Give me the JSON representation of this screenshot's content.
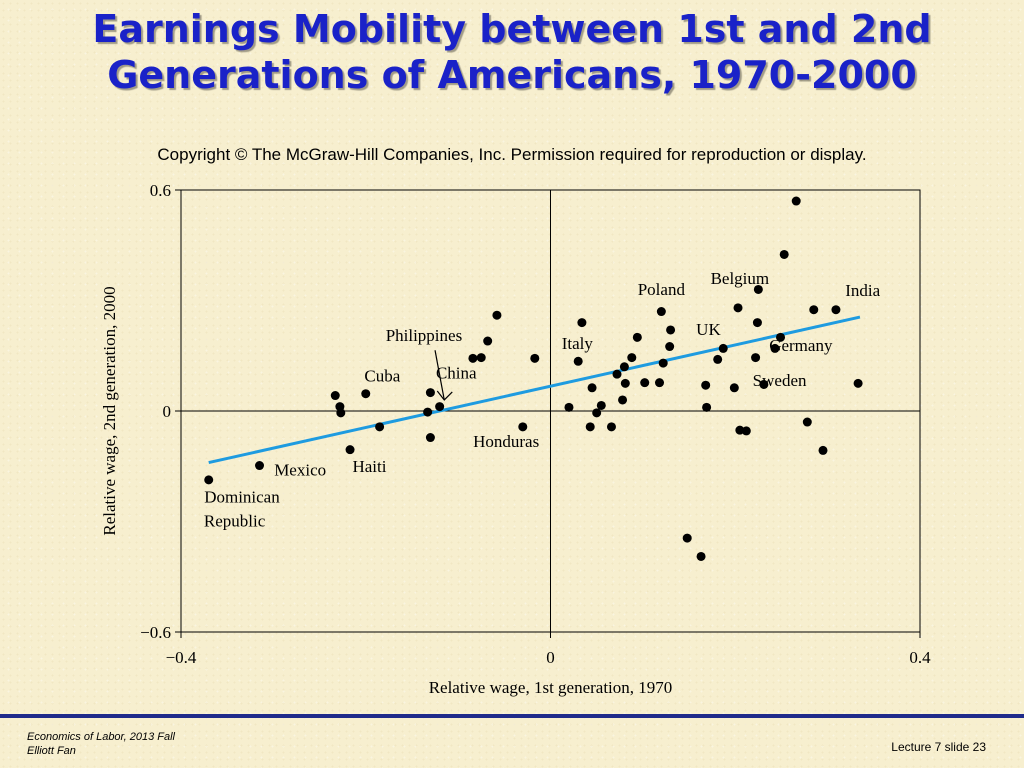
{
  "slide": {
    "title_line1": "Earnings Mobility between 1st and 2nd",
    "title_line2": "Generations of Americans, 1970-2000",
    "copyright": "Copyright © The McGraw-Hill Companies, Inc. Permission required for reproduction or display.",
    "footer_course": "Economics of Labor, 2013 Fall",
    "footer_author": "Elliott Fan",
    "footer_slide": "Lecture 7 slide 23"
  },
  "colors": {
    "title": "#1a22c8",
    "trend_line": "#1e9be0",
    "points": "#000000",
    "footer_line": "#1f2a8a"
  },
  "chart_data": {
    "type": "scatter",
    "xlabel": "Relative wage, 1st generation, 1970",
    "ylabel": "Relative wage, 2nd generation, 2000",
    "xlim": [
      -0.4,
      0.4
    ],
    "ylim": [
      -0.6,
      0.6
    ],
    "xticks": [
      {
        "value": -0.4,
        "label": "−0.4"
      },
      {
        "value": 0,
        "label": "0"
      },
      {
        "value": 0.4,
        "label": "0.4"
      }
    ],
    "yticks": [
      {
        "value": 0.6,
        "label": "0.6"
      },
      {
        "value": 0,
        "label": "0"
      },
      {
        "value": -0.6,
        "label": "−0.6"
      }
    ],
    "trend_line": {
      "x": [
        -0.37,
        0.335
      ],
      "y": [
        -0.14,
        0.255
      ]
    },
    "points": [
      {
        "x": 0.266,
        "y": 0.57
      },
      {
        "x": 0.253,
        "y": 0.425
      },
      {
        "x": 0.225,
        "y": 0.33
      },
      {
        "x": 0.203,
        "y": 0.28
      },
      {
        "x": 0.285,
        "y": 0.275
      },
      {
        "x": 0.309,
        "y": 0.275
      },
      {
        "x": 0.12,
        "y": 0.27
      },
      {
        "x": 0.034,
        "y": 0.24
      },
      {
        "x": 0.224,
        "y": 0.24
      },
      {
        "x": 0.13,
        "y": 0.22
      },
      {
        "x": 0.094,
        "y": 0.2
      },
      {
        "x": 0.249,
        "y": 0.2
      },
      {
        "x": 0.129,
        "y": 0.175
      },
      {
        "x": 0.187,
        "y": 0.17
      },
      {
        "x": 0.243,
        "y": 0.17
      },
      {
        "x": 0.088,
        "y": 0.145
      },
      {
        "x": 0.181,
        "y": 0.14
      },
      {
        "x": 0.222,
        "y": 0.145
      },
      {
        "x": 0.03,
        "y": 0.135
      },
      {
        "x": 0.122,
        "y": 0.13
      },
      {
        "x": 0.08,
        "y": 0.12
      },
      {
        "x": 0.072,
        "y": 0.1
      },
      {
        "x": 0.081,
        "y": 0.075
      },
      {
        "x": 0.102,
        "y": 0.077
      },
      {
        "x": 0.118,
        "y": 0.077
      },
      {
        "x": 0.045,
        "y": 0.063
      },
      {
        "x": 0.168,
        "y": 0.07
      },
      {
        "x": 0.199,
        "y": 0.063
      },
      {
        "x": 0.231,
        "y": 0.072
      },
      {
        "x": 0.333,
        "y": 0.075
      },
      {
        "x": 0.078,
        "y": 0.03
      },
      {
        "x": 0.055,
        "y": 0.015
      },
      {
        "x": 0.02,
        "y": 0.01
      },
      {
        "x": 0.169,
        "y": 0.01
      },
      {
        "x": 0.05,
        "y": -0.005
      },
      {
        "x": 0.043,
        "y": -0.043
      },
      {
        "x": 0.066,
        "y": -0.043
      },
      {
        "x": 0.205,
        "y": -0.052
      },
      {
        "x": 0.212,
        "y": -0.054
      },
      {
        "x": 0.278,
        "y": -0.03
      },
      {
        "x": 0.295,
        "y": -0.107
      },
      {
        "x": 0.148,
        "y": -0.345
      },
      {
        "x": 0.163,
        "y": -0.395
      },
      {
        "x": -0.058,
        "y": 0.26
      },
      {
        "x": -0.068,
        "y": 0.19
      },
      {
        "x": -0.075,
        "y": 0.145
      },
      {
        "x": -0.084,
        "y": 0.143
      },
      {
        "x": -0.017,
        "y": 0.143
      },
      {
        "x": -0.13,
        "y": 0.05
      },
      {
        "x": -0.12,
        "y": 0.012
      },
      {
        "x": -0.133,
        "y": -0.003
      },
      {
        "x": -0.13,
        "y": -0.072
      },
      {
        "x": -0.03,
        "y": -0.043
      },
      {
        "x": -0.2,
        "y": 0.047
      },
      {
        "x": -0.233,
        "y": 0.042
      },
      {
        "x": -0.228,
        "y": 0.012
      },
      {
        "x": -0.227,
        "y": -0.005
      },
      {
        "x": -0.185,
        "y": -0.043
      },
      {
        "x": -0.217,
        "y": -0.105
      },
      {
        "x": -0.315,
        "y": -0.148
      },
      {
        "x": -0.37,
        "y": -0.187
      }
    ],
    "annotations": [
      {
        "text": "Belgium",
        "x": 0.205,
        "y": 0.345
      },
      {
        "text": "Poland",
        "x": 0.12,
        "y": 0.315
      },
      {
        "text": "India",
        "x": 0.338,
        "y": 0.312
      },
      {
        "text": "UK",
        "x": 0.171,
        "y": 0.207
      },
      {
        "text": "Italy",
        "x": 0.029,
        "y": 0.168
      },
      {
        "text": "Germany",
        "x": 0.271,
        "y": 0.163
      },
      {
        "text": "Philippines",
        "x": -0.137,
        "y": 0.19
      },
      {
        "text": "China",
        "x": -0.102,
        "y": 0.088
      },
      {
        "text": "Cuba",
        "x": -0.182,
        "y": 0.08
      },
      {
        "text": "Sweden",
        "x": 0.248,
        "y": 0.068
      },
      {
        "text": "Honduras",
        "x": -0.048,
        "y": -0.098
      },
      {
        "text": "Haiti",
        "x": -0.196,
        "y": -0.165
      },
      {
        "text": "Mexico",
        "x": -0.271,
        "y": -0.175
      },
      {
        "text": "Dominican",
        "x": -0.334,
        "y": -0.248
      },
      {
        "text": "Republic",
        "x": -0.342,
        "y": -0.313
      }
    ]
  }
}
